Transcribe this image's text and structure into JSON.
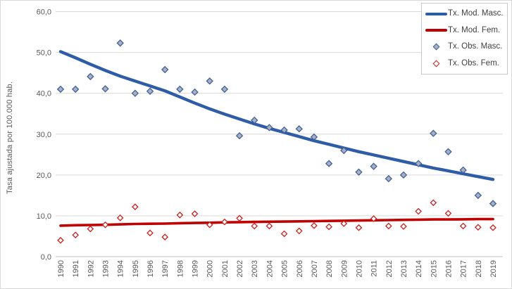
{
  "chart_data": {
    "type": "scatter",
    "title": "",
    "xlabel": "",
    "ylabel": "Tasa ajustada por 100.000 hab.",
    "ylim": [
      0,
      60
    ],
    "grid": true,
    "legend_position": "top-right",
    "y_ticks": [
      0,
      10,
      20,
      30,
      40,
      50,
      60
    ],
    "y_tick_labels": [
      "0,0",
      "10,0",
      "20,0",
      "30,0",
      "40,0",
      "50,0",
      "60,0"
    ],
    "x": [
      1990,
      1991,
      1992,
      1993,
      1994,
      1995,
      1996,
      1997,
      1998,
      1999,
      2000,
      2001,
      2002,
      2003,
      2004,
      2005,
      2006,
      2007,
      2008,
      2009,
      2010,
      2011,
      2012,
      2013,
      2014,
      2015,
      2016,
      2017,
      2018,
      2019
    ],
    "series": [
      {
        "name": "Tx. Mod. Masc.",
        "kind": "line",
        "color": "#2e5ca6",
        "width": 4.4,
        "values": [
          50.2,
          48.7,
          47.1,
          45.6,
          44.2,
          43.0,
          41.8,
          40.6,
          39.1,
          37.6,
          36.2,
          34.9,
          33.7,
          32.5,
          31.4,
          30.4,
          29.4,
          28.4,
          27.5,
          26.6,
          25.7,
          24.9,
          24.1,
          23.3,
          22.5,
          21.7,
          21.0,
          20.3,
          19.6,
          18.9
        ]
      },
      {
        "name": "Tx. Mod. Fem.",
        "kind": "line",
        "color": "#c00000",
        "width": 3.6,
        "values": [
          7.6,
          7.7,
          7.75,
          7.8,
          7.9,
          8.0,
          8.05,
          8.1,
          8.2,
          8.25,
          8.3,
          8.4,
          8.45,
          8.5,
          8.55,
          8.6,
          8.65,
          8.7,
          8.75,
          8.8,
          8.85,
          8.9,
          8.95,
          9.0,
          9.05,
          9.1,
          9.1,
          9.15,
          9.2,
          9.2
        ]
      },
      {
        "name": "Tx. Obs. Masc.",
        "kind": "scatter",
        "marker": "diamond-filled",
        "color": "#41619c",
        "fill": "#a9b1c1",
        "values": [
          41.0,
          41.0,
          44.1,
          41.1,
          52.3,
          40.0,
          40.5,
          45.8,
          41.0,
          40.3,
          43.0,
          41.0,
          29.6,
          33.4,
          31.6,
          31.0,
          31.3,
          29.3,
          22.8,
          26.0,
          20.7,
          22.1,
          19.1,
          20.0,
          22.8,
          30.2,
          25.7,
          21.2,
          15.0,
          13.0
        ]
      },
      {
        "name": "Tx. Obs. Fem.",
        "kind": "scatter",
        "marker": "diamond-open",
        "color": "#c9211e",
        "fill": "#ffffff",
        "values": [
          4.0,
          5.3,
          6.8,
          7.8,
          9.5,
          12.2,
          5.8,
          4.8,
          10.2,
          10.5,
          7.8,
          8.5,
          9.4,
          7.5,
          7.5,
          5.6,
          6.3,
          7.6,
          7.3,
          8.1,
          7.1,
          9.3,
          7.5,
          7.4,
          11.1,
          13.2,
          10.6,
          7.5,
          7.2,
          7.1
        ]
      }
    ],
    "style": {
      "gridline_color": "#d9d9d9",
      "axis_line_color": "#bfbfbf",
      "tick_label_color": "#595959",
      "legend_text_color": "#3f3f3f"
    }
  }
}
